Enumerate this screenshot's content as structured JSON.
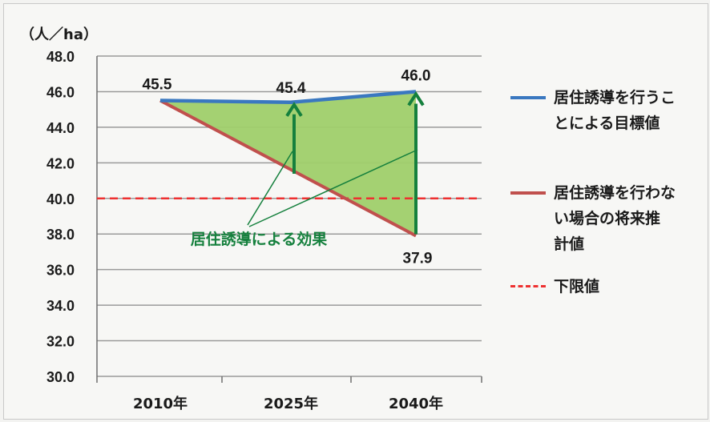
{
  "chart_data": {
    "type": "line",
    "unit_label": "（人／ha）",
    "categories": [
      "2010年",
      "2025年",
      "2040年"
    ],
    "y_ticks": [
      "30.0",
      "32.0",
      "34.0",
      "36.0",
      "38.0",
      "40.0",
      "42.0",
      "44.0",
      "46.0",
      "48.0"
    ],
    "ylim": [
      30,
      48
    ],
    "grid": true,
    "legend_position": "right",
    "series": [
      {
        "name": "居住誘導を行うことによる目標値",
        "values": [
          45.5,
          45.4,
          46.0
        ],
        "data_labels": [
          "45.5",
          "45.4",
          "46.0"
        ],
        "color": "#3a78c0"
      },
      {
        "name": "居住誘導を行わない場合の将来推計値",
        "values": [
          45.5,
          null,
          37.9
        ],
        "data_labels": [
          "",
          "",
          "37.9"
        ],
        "color": "#c0504d"
      },
      {
        "name": "下限値",
        "values": [
          40.0,
          40.0,
          40.0
        ],
        "color": "#ee3030",
        "style": "dashed"
      }
    ],
    "fill_color": "#9fcf6a",
    "arrow_color": "#15803d",
    "annotation": "居住誘導による効果"
  }
}
